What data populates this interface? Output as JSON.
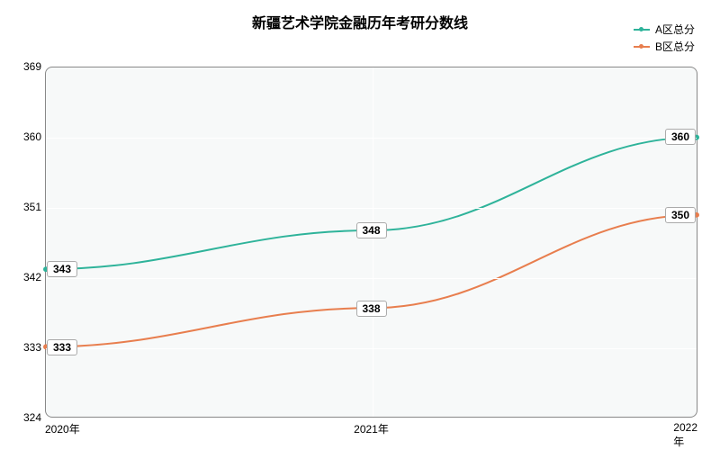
{
  "chart": {
    "type": "line",
    "title": "新疆艺术学院金融历年考研分数线",
    "title_fontsize": 16,
    "background_color": "#ffffff",
    "plot_background": "#f7f9f9",
    "plot_border_color": "#888888",
    "grid_color": "#ffffff",
    "label_fontsize": 12,
    "x": {
      "categories": [
        "2020年",
        "2021年",
        "2022年"
      ],
      "positions_pct": [
        0,
        50,
        100
      ]
    },
    "y": {
      "min": 324,
      "max": 369,
      "ticks": [
        324,
        333,
        342,
        351,
        360,
        369
      ]
    },
    "series": [
      {
        "name": "A区总分",
        "color": "#2eb39a",
        "line_width": 2,
        "values": [
          343,
          348,
          360
        ]
      },
      {
        "name": "B区总分",
        "color": "#e87e4e",
        "line_width": 2,
        "values": [
          333,
          338,
          350
        ]
      }
    ]
  }
}
